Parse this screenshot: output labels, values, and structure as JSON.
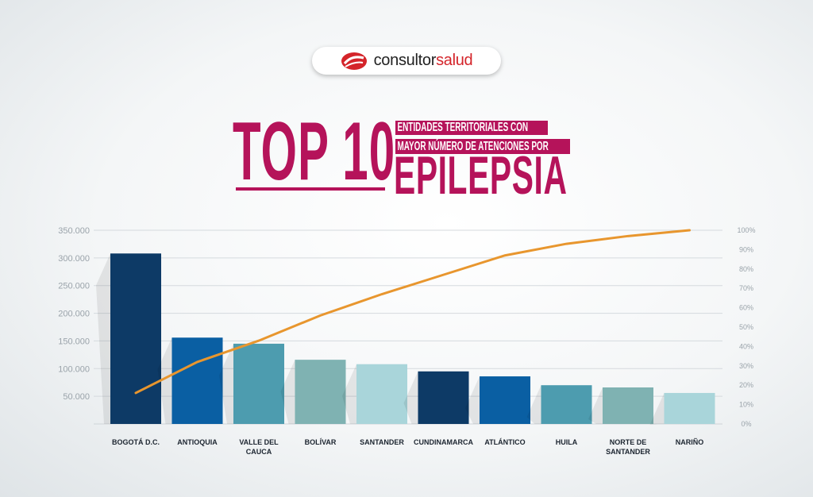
{
  "logo": {
    "text_main": "consultor",
    "text_accent": "salud"
  },
  "title": {
    "big": "TOP 10",
    "line1": "ENTIDADES TERRITORIALES CON",
    "line2": "MAYOR NÚMERO DE ATENCIONES POR",
    "highlight": "EPILEPSIA"
  },
  "chart_data": {
    "type": "bar",
    "categories": [
      "BOGOTÁ D.C.",
      "ANTIOQUIA",
      "VALLE DEL CAUCA",
      "BOLÍVAR",
      "SANTANDER",
      "CUNDINAMARCA",
      "ATLÁNTICO",
      "HUILA",
      "NORTE DE SANTANDER",
      "NARIÑO"
    ],
    "category_lines": [
      [
        "BOGOTÁ D.C."
      ],
      [
        "ANTIOQUIA"
      ],
      [
        "VALLE DEL",
        "CAUCA"
      ],
      [
        "BOLÍVAR"
      ],
      [
        "SANTANDER"
      ],
      [
        "CUNDINAMARCA"
      ],
      [
        "ATLÁNTICO"
      ],
      [
        "HUILA"
      ],
      [
        "NORTE DE",
        "SANTANDER"
      ],
      [
        "NARIÑO"
      ]
    ],
    "values": [
      308000,
      156000,
      145000,
      116000,
      108000,
      95000,
      86000,
      70000,
      66000,
      56000
    ],
    "bar_colors": [
      "#0d3a66",
      "#0a5fa3",
      "#4d9caf",
      "#7fb2b2",
      "#a9d5da",
      "#0d3a66",
      "#0a5fa3",
      "#4d9caf",
      "#7fb2b2",
      "#a9d5da"
    ],
    "cumulative_line": {
      "type": "line",
      "axis": "right",
      "color": "#e8962e",
      "values": [
        16,
        32,
        43,
        56,
        67,
        77,
        87,
        93,
        97,
        100
      ]
    },
    "ylim": [
      0,
      350000
    ],
    "yticks": [
      "50.000",
      "100.000",
      "150.000",
      "200.000",
      "250.000",
      "300.000",
      "350.000"
    ],
    "ytick_values": [
      50000,
      100000,
      150000,
      200000,
      250000,
      300000,
      350000
    ],
    "y2lim": [
      0,
      100
    ],
    "y2ticks": [
      "0%",
      "10%",
      "20%",
      "30%",
      "40%",
      "50%",
      "60%",
      "70%",
      "80%",
      "90%",
      "100%"
    ],
    "grid": true
  }
}
